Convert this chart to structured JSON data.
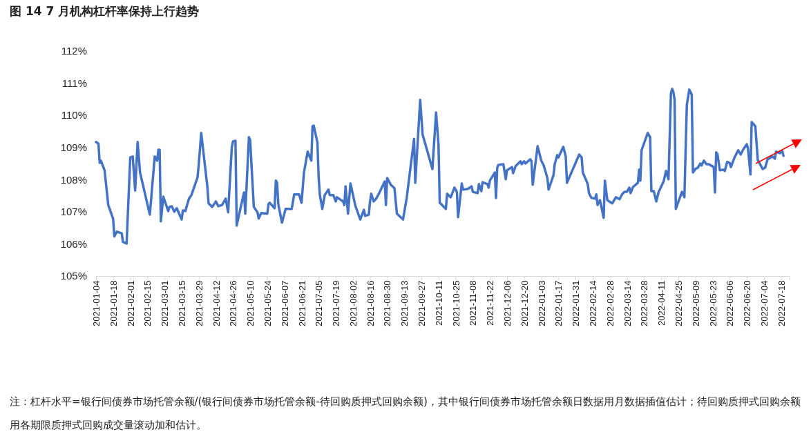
{
  "chart_data": {
    "type": "line",
    "title": "图 14 7 月机构杠杆率保持上行趋势",
    "annotations": [
      "注：杠杆水平=银行间债券市场托管余额/(银行间债券市场托管余额-待回购质押式回购余额)，其中银行间债券市场托管余额日数据用月数据插值估计；待回购质押式回购余额用各期限质押式回购成交量滚动加和估计。"
    ],
    "x": [
      "2021-01-04",
      "2021-01-06",
      "2021-01-07",
      "2021-01-08",
      "2021-01-11",
      "2021-01-14",
      "2021-01-18",
      "2021-01-19",
      "2021-01-21",
      "2021-01-25",
      "2021-01-26",
      "2021-01-29",
      "2021-02-01",
      "2021-02-03",
      "2021-02-05",
      "2021-02-07",
      "2021-02-09",
      "2021-02-17",
      "2021-02-21",
      "2021-02-23",
      "2021-02-24",
      "2021-02-25",
      "2021-02-26",
      "2021-02-28",
      "2021-03-04",
      "2021-03-05",
      "2021-03-07",
      "2021-03-09",
      "2021-03-11",
      "2021-03-15",
      "2021-03-16",
      "2021-03-18",
      "2021-03-21",
      "2021-03-23",
      "2021-03-28",
      "2021-03-29",
      "2021-03-31",
      "2021-04-05",
      "2021-04-06",
      "2021-04-09",
      "2021-04-12",
      "2021-04-14",
      "2021-04-17",
      "2021-04-20",
      "2021-04-22",
      "2021-04-25",
      "2021-04-26",
      "2021-04-28",
      "2021-04-29",
      "2021-05-02",
      "2021-05-05",
      "2021-05-06",
      "2021-05-09",
      "2021-05-10",
      "2021-05-13",
      "2021-05-16",
      "2021-05-17",
      "2021-05-19",
      "2021-05-24",
      "2021-05-25",
      "2021-05-26",
      "2021-05-30",
      "2021-05-31",
      "2021-06-01",
      "2021-06-02",
      "2021-06-05",
      "2021-06-08",
      "2021-06-13",
      "2021-06-15",
      "2021-06-19",
      "2021-06-21",
      "2021-06-23",
      "2021-06-26",
      "2021-06-29",
      "2021-06-30",
      "2021-07-01",
      "2021-07-04",
      "2021-07-05",
      "2021-07-06",
      "2021-07-08",
      "2021-07-10",
      "2021-07-13",
      "2021-07-14",
      "2021-07-17",
      "2021-07-19",
      "2021-07-20",
      "2021-07-25",
      "2021-07-26",
      "2021-07-27",
      "2021-07-29",
      "2021-07-31",
      "2021-08-04",
      "2021-08-08",
      "2021-08-11",
      "2021-08-12",
      "2021-08-15",
      "2021-08-16",
      "2021-08-17",
      "2021-08-19",
      "2021-08-21",
      "2021-08-23",
      "2021-08-28",
      "2021-08-29",
      "2021-08-30",
      "2021-09-02",
      "2021-09-05",
      "2021-09-06",
      "2021-09-07",
      "2021-09-12",
      "2021-09-15",
      "2021-09-21",
      "2021-09-22",
      "2021-09-26",
      "2021-09-28",
      "2021-10-06",
      "2021-10-09",
      "2021-10-11",
      "2021-10-12",
      "2021-10-17",
      "2021-10-18",
      "2021-10-21",
      "2021-10-24",
      "2021-10-26",
      "2021-10-27",
      "2021-10-30",
      "2021-10-31",
      "2021-11-04",
      "2021-11-07",
      "2021-11-08",
      "2021-11-12",
      "2021-11-13",
      "2021-11-15",
      "2021-11-16",
      "2021-11-20",
      "2021-11-21",
      "2021-11-22",
      "2021-11-26",
      "2021-11-27",
      "2021-11-28",
      "2021-11-29",
      "2021-12-03",
      "2021-12-05",
      "2021-12-06",
      "2021-12-10",
      "2021-12-11",
      "2021-12-13",
      "2021-12-17",
      "2021-12-18",
      "2021-12-20",
      "2021-12-21",
      "2021-12-25",
      "2021-12-26",
      "2021-12-27",
      "2021-12-31",
      "2022-01-03",
      "2022-01-05",
      "2022-01-08",
      "2022-01-09",
      "2022-01-13",
      "2022-01-14",
      "2022-01-16",
      "2022-01-17",
      "2022-01-21",
      "2022-01-23",
      "2022-01-24",
      "2022-02-03",
      "2022-02-05",
      "2022-02-06",
      "2022-02-10",
      "2022-02-11",
      "2022-02-13",
      "2022-02-16",
      "2022-02-17",
      "2022-02-18",
      "2022-02-20",
      "2022-02-23",
      "2022-02-24",
      "2022-02-26",
      "2022-03-02",
      "2022-03-05",
      "2022-03-08",
      "2022-03-10",
      "2022-03-12",
      "2022-03-14",
      "2022-03-16",
      "2022-03-17",
      "2022-03-19",
      "2022-03-23",
      "2022-03-24",
      "2022-03-25",
      "2022-03-26",
      "2022-03-31",
      "2022-04-02",
      "2022-04-03",
      "2022-04-05",
      "2022-04-07",
      "2022-04-09",
      "2022-04-13",
      "2022-04-15",
      "2022-04-17",
      "2022-04-19",
      "2022-04-20",
      "2022-04-21",
      "2022-04-22",
      "2022-04-23",
      "2022-04-28",
      "2022-04-30",
      "2022-05-02",
      "2022-05-04",
      "2022-05-06",
      "2022-05-07",
      "2022-05-09",
      "2022-05-11",
      "2022-05-13",
      "2022-05-14",
      "2022-05-16",
      "2022-05-18",
      "2022-05-20",
      "2022-05-24",
      "2022-05-25",
      "2022-05-26",
      "2022-05-27",
      "2022-05-29",
      "2022-06-01",
      "2022-06-02",
      "2022-06-04",
      "2022-06-06",
      "2022-06-07",
      "2022-06-09",
      "2022-06-10",
      "2022-06-13",
      "2022-06-15",
      "2022-06-17",
      "2022-06-20",
      "2022-06-21",
      "2022-06-23",
      "2022-06-24",
      "2022-06-27",
      "2022-06-29",
      "2022-07-03",
      "2022-07-05",
      "2022-07-07",
      "2022-07-11",
      "2022-07-13",
      "2022-07-14",
      "2022-07-17",
      "2022-07-19",
      "2022-07-20"
    ],
    "series": [
      {
        "color": "#4472c4",
        "values": [
          109.17,
          109.12,
          108.52,
          108.59,
          108.29,
          107.21,
          106.78,
          106.23,
          106.38,
          106.33,
          106.06,
          106.01,
          108.69,
          108.72,
          107.66,
          109.17,
          108.22,
          106.91,
          108.72,
          108.59,
          108.93,
          108.93,
          106.7,
          107.47,
          107.02,
          107.15,
          107.17,
          107.0,
          107.11,
          106.76,
          107.04,
          107.02,
          107.41,
          107.52,
          108.07,
          108.48,
          109.45,
          107.79,
          107.26,
          107.15,
          107.32,
          107.17,
          107.21,
          107.41,
          106.98,
          109.0,
          109.19,
          109.21,
          106.57,
          107.09,
          107.6,
          106.94,
          109.32,
          109.23,
          107.15,
          106.98,
          106.79,
          106.96,
          106.94,
          107.24,
          107.28,
          107.11,
          107.97,
          107.9,
          107.24,
          106.66,
          107.09,
          107.09,
          107.54,
          107.54,
          107.28,
          108.22,
          108.87,
          108.59,
          109.66,
          109.68,
          109.15,
          108.07,
          107.52,
          107.09,
          107.52,
          107.69,
          107.52,
          107.52,
          107.32,
          107.45,
          107.32,
          107.21,
          107.79,
          106.94,
          107.88,
          107.19,
          106.76,
          107.06,
          106.87,
          106.91,
          107.32,
          107.56,
          107.32,
          107.41,
          107.54,
          107.94,
          107.21,
          108.05,
          107.84,
          107.73,
          107.32,
          106.94,
          106.76,
          107.43,
          109.27,
          107.9,
          110.48,
          109.4,
          108.33,
          110.09,
          109.08,
          107.28,
          107.09,
          107.56,
          107.45,
          107.75,
          107.62,
          106.83,
          107.88,
          107.69,
          107.71,
          107.79,
          107.62,
          107.58,
          107.86,
          107.64,
          107.92,
          107.86,
          107.75,
          107.97,
          108.22,
          107.43,
          108.37,
          108.46,
          108.48,
          108.01,
          108.29,
          108.39,
          108.2,
          108.42,
          108.57,
          108.48,
          108.57,
          108.5,
          108.63,
          108.57,
          107.84,
          109.04,
          108.59,
          108.44,
          108.05,
          107.69,
          108.14,
          108.48,
          108.76,
          108.69,
          109.02,
          108.72,
          107.9,
          108.78,
          108.69,
          108.22,
          107.86,
          107.58,
          107.43,
          107.41,
          107.54,
          107.21,
          107.36,
          106.81,
          107.97,
          107.36,
          107.26,
          107.45,
          107.39,
          107.54,
          107.62,
          107.62,
          107.75,
          107.58,
          107.77,
          107.9,
          108.31,
          107.97,
          108.91,
          109.45,
          109.32,
          107.64,
          107.64,
          107.32,
          107.62,
          107.94,
          108.27,
          108.01,
          110.69,
          110.82,
          110.73,
          110.48,
          107.09,
          107.62,
          107.45,
          110.33,
          110.8,
          110.65,
          108.22,
          108.33,
          108.37,
          108.5,
          108.44,
          108.59,
          108.48,
          108.48,
          108.39,
          107.6,
          108.85,
          108.8,
          108.29,
          108.31,
          108.27,
          108.55,
          108.52,
          108.39,
          108.59,
          108.69,
          108.91,
          108.78,
          108.93,
          109.1,
          108.97,
          108.16,
          109.79,
          109.66,
          108.61,
          108.33,
          108.37,
          108.63,
          108.72,
          108.65,
          108.87,
          108.82,
          108.89,
          108.74
        ]
      }
    ],
    "xlim": [
      "2021-01-04",
      "2022-07-25"
    ],
    "xticks": [
      "2021-01-04",
      "2021-01-18",
      "2021-02-01",
      "2021-02-15",
      "2021-03-01",
      "2021-03-15",
      "2021-03-29",
      "2021-04-12",
      "2021-04-26",
      "2021-05-10",
      "2021-05-24",
      "2021-06-07",
      "2021-06-21",
      "2021-07-05",
      "2021-07-19",
      "2021-08-02",
      "2021-08-16",
      "2021-08-30",
      "2021-09-13",
      "2021-09-27",
      "2021-10-11",
      "2021-10-25",
      "2021-11-08",
      "2021-11-22",
      "2021-12-06",
      "2021-12-20",
      "2022-01-03",
      "2022-01-17",
      "2022-01-31",
      "2022-02-14",
      "2022-02-28",
      "2022-03-14",
      "2022-03-28",
      "2022-04-11",
      "2022-04-25",
      "2022-05-09",
      "2022-05-23",
      "2022-06-06",
      "2022-06-20",
      "2022-07-04",
      "2022-07-18"
    ],
    "ylim": [
      105,
      112
    ],
    "yticks": [
      {
        "value": 105,
        "label": "105%"
      },
      {
        "value": 106,
        "label": "106%"
      },
      {
        "value": 107,
        "label": "107%"
      },
      {
        "value": 108,
        "label": "108%"
      },
      {
        "value": 109,
        "label": "109%"
      },
      {
        "value": 110,
        "label": "110%"
      },
      {
        "value": 111,
        "label": "111%"
      },
      {
        "value": 112,
        "label": "112%"
      }
    ],
    "grid": false,
    "marker": "none",
    "line_style": "solid"
  }
}
